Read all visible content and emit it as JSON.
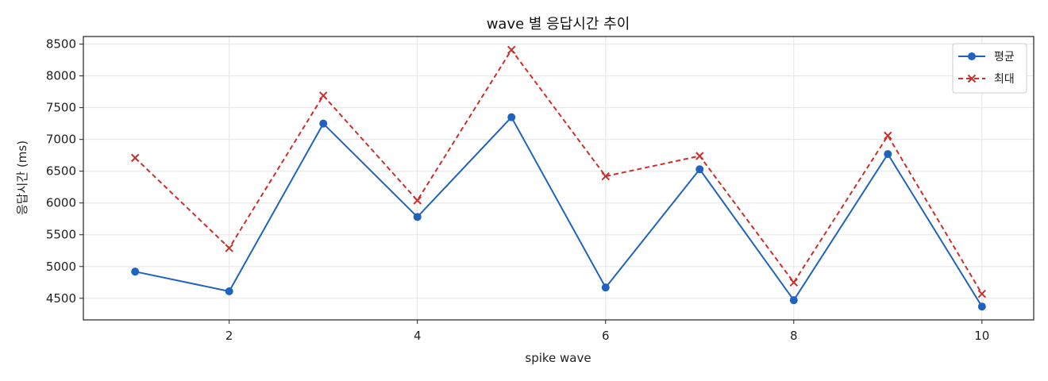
{
  "chart_data": {
    "type": "line",
    "title": "wave 별 응답시간 추이",
    "xlabel": "spike wave",
    "ylabel": "응답시간 (ms)",
    "x": [
      1,
      2,
      3,
      4,
      5,
      6,
      7,
      8,
      9,
      10
    ],
    "xlim": [
      0.45,
      10.55
    ],
    "ylim": [
      4160,
      8620
    ],
    "xticks": [
      2,
      4,
      6,
      8,
      10
    ],
    "yticks": [
      4500,
      5000,
      5500,
      6000,
      6500,
      7000,
      7500,
      8000,
      8500
    ],
    "grid": true,
    "legend_position": "top-right",
    "series": [
      {
        "name": "평균",
        "values": [
          4920,
          4610,
          7250,
          5780,
          7350,
          4670,
          6530,
          4470,
          6770,
          4370
        ],
        "color": "#1f63bf",
        "marker": "circle",
        "line_style": "solid"
      },
      {
        "name": "최대",
        "values": [
          6710,
          5290,
          7690,
          6040,
          8410,
          6420,
          6740,
          4750,
          7060,
          4570
        ],
        "color": "#c9302c",
        "marker": "x",
        "line_style": "dashed"
      }
    ]
  }
}
